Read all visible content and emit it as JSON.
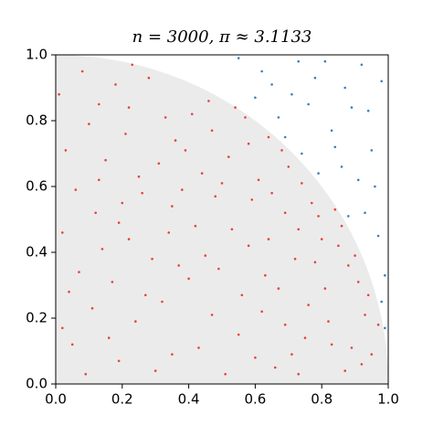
{
  "chart_data": {
    "type": "scatter",
    "title": "n = 3000, π ≈ 3.1133",
    "xlim": [
      0,
      1
    ],
    "ylim": [
      0,
      1
    ],
    "xticks": [
      {
        "value": 0,
        "label": "0.0"
      },
      0.2,
      0.4,
      0.6,
      0.8,
      {
        "value": 1,
        "label": "1.0"
      }
    ],
    "yticks": [
      {
        "value": 0,
        "label": "0.0"
      },
      0.2,
      0.4,
      0.6,
      0.8,
      {
        "value": 1,
        "label": "1.0"
      }
    ],
    "series": [
      {
        "color": "#e8403f",
        "x": [
          0.05,
          0.13,
          0.22,
          0.31,
          0.47,
          0.58,
          0.66,
          0.72,
          0.81,
          0.89,
          0.94,
          0.08,
          0.17,
          0.26,
          0.35,
          0.41,
          0.53,
          0.61,
          0.69,
          0.77,
          0.85,
          0.92,
          0.03,
          0.12,
          0.19,
          0.28,
          0.37,
          0.44,
          0.55,
          0.63,
          0.74,
          0.83,
          0.97,
          0.07,
          0.15,
          0.24,
          0.33,
          0.42,
          0.51,
          0.59,
          0.68,
          0.76,
          0.86,
          0.95,
          0.02,
          0.11,
          0.21,
          0.29,
          0.38,
          0.46,
          0.56,
          0.64,
          0.71,
          0.79,
          0.88,
          0.01,
          0.14,
          0.23,
          0.32,
          0.39,
          0.49,
          0.57,
          0.65,
          0.73,
          0.82,
          0.91,
          0.06,
          0.16,
          0.25,
          0.34,
          0.43,
          0.52,
          0.62,
          0.7,
          0.78,
          0.87,
          0.04,
          0.1,
          0.2,
          0.3,
          0.4,
          0.48,
          0.54,
          0.67,
          0.75,
          0.84,
          0.93,
          0.09,
          0.18,
          0.27,
          0.36,
          0.45,
          0.5,
          0.6,
          0.69,
          0.8,
          0.9,
          0.13,
          0.22,
          0.35,
          0.47,
          0.58,
          0.64,
          0.73,
          0.02,
          0.19
        ],
        "values": [
          0.12,
          0.85,
          0.44,
          0.67,
          0.21,
          0.73,
          0.05,
          0.38,
          0.29,
          0.11,
          0.27,
          0.95,
          0.31,
          0.58,
          0.09,
          0.82,
          0.47,
          0.62,
          0.18,
          0.55,
          0.42,
          0.06,
          0.71,
          0.52,
          0.07,
          0.93,
          0.36,
          0.64,
          0.15,
          0.33,
          0.61,
          0.12,
          0.18,
          0.34,
          0.68,
          0.19,
          0.81,
          0.48,
          0.03,
          0.56,
          0.71,
          0.24,
          0.48,
          0.09,
          0.46,
          0.23,
          0.76,
          0.38,
          0.59,
          0.86,
          0.27,
          0.44,
          0.09,
          0.51,
          0.36,
          0.88,
          0.41,
          0.97,
          0.25,
          0.71,
          0.35,
          0.81,
          0.58,
          0.47,
          0.19,
          0.31,
          0.59,
          0.14,
          0.63,
          0.46,
          0.11,
          0.69,
          0.22,
          0.66,
          0.37,
          0.04,
          0.28,
          0.79,
          0.55,
          0.04,
          0.32,
          0.57,
          0.84,
          0.29,
          0.14,
          0.53,
          0.21,
          0.03,
          0.91,
          0.27,
          0.74,
          0.39,
          0.61,
          0.08,
          0.52,
          0.44,
          0.39,
          0.62,
          0.84,
          0.54,
          0.77,
          0.42,
          0.75,
          0.03,
          0.17,
          0.49
        ]
      },
      {
        "color": "#3a7fc0",
        "x": [
          0.62,
          0.71,
          0.83,
          0.91,
          0.97,
          0.78,
          0.89,
          0.95,
          0.99,
          0.55,
          0.67,
          0.74,
          0.86,
          0.93,
          0.98,
          0.81,
          0.69,
          0.96,
          0.88,
          0.76,
          0.92,
          0.84,
          0.99,
          0.6,
          0.73,
          0.94,
          0.87,
          0.79,
          0.98,
          0.65
        ],
        "values": [
          0.95,
          0.88,
          0.77,
          0.62,
          0.45,
          0.93,
          0.84,
          0.71,
          0.33,
          0.99,
          0.81,
          0.7,
          0.66,
          0.52,
          0.92,
          0.98,
          0.75,
          0.6,
          0.51,
          0.85,
          0.97,
          0.72,
          0.17,
          0.87,
          0.98,
          0.83,
          0.9,
          0.64,
          0.25,
          0.91
        ]
      }
    ]
  }
}
